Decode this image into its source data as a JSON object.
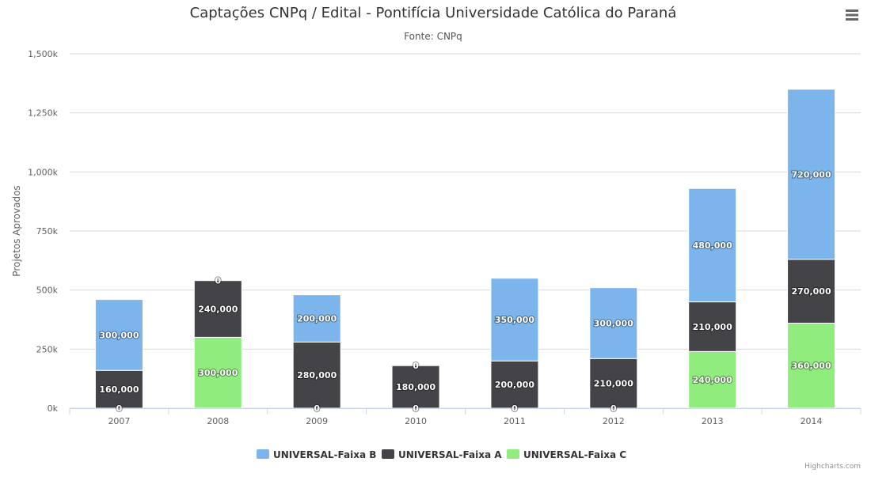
{
  "chart_data": {
    "type": "bar",
    "stacked": true,
    "title": "Captações CNPq / Edital - Pontifícia Universidade Católica do Paraná",
    "subtitle": "Fonte: CNPq",
    "xlabel": "",
    "ylabel": "Projetos Aprovados",
    "ylim": [
      0,
      1500000
    ],
    "y_ticks": [
      0,
      250000,
      500000,
      750000,
      1000000,
      1250000,
      1500000
    ],
    "y_tick_labels": [
      "0k",
      "250k",
      "500k",
      "750k",
      "1,000k",
      "1,250k",
      "1,500k"
    ],
    "categories": [
      "2007",
      "2008",
      "2009",
      "2010",
      "2011",
      "2012",
      "2013",
      "2014"
    ],
    "grid": true,
    "legend_position": "bottom-center",
    "series": [
      {
        "name": "UNIVERSAL-Faixa B",
        "color": "#7cb5ec",
        "values": [
          300000,
          0,
          200000,
          0,
          350000,
          300000,
          480000,
          720000
        ],
        "labels": [
          "300,000",
          "0",
          "200,000",
          "0",
          "350,000",
          "300,000",
          "480,000",
          "720,000"
        ]
      },
      {
        "name": "UNIVERSAL-Faixa A",
        "color": "#434348",
        "values": [
          160000,
          240000,
          280000,
          180000,
          200000,
          210000,
          210000,
          270000
        ],
        "labels": [
          "160,000",
          "240,000",
          "280,000",
          "180,000",
          "200,000",
          "210,000",
          "210,000",
          "270,000"
        ]
      },
      {
        "name": "UNIVERSAL-Faixa C",
        "color": "#90ed7d",
        "values": [
          0,
          300000,
          0,
          0,
          0,
          0,
          240000,
          360000
        ],
        "labels": [
          "0",
          "300,000",
          "0",
          "0",
          "0",
          "0",
          "240,000",
          "360,000"
        ]
      }
    ]
  },
  "ui": {
    "menu_icon": "hamburger-menu-icon",
    "credits": "Highcharts.com"
  }
}
